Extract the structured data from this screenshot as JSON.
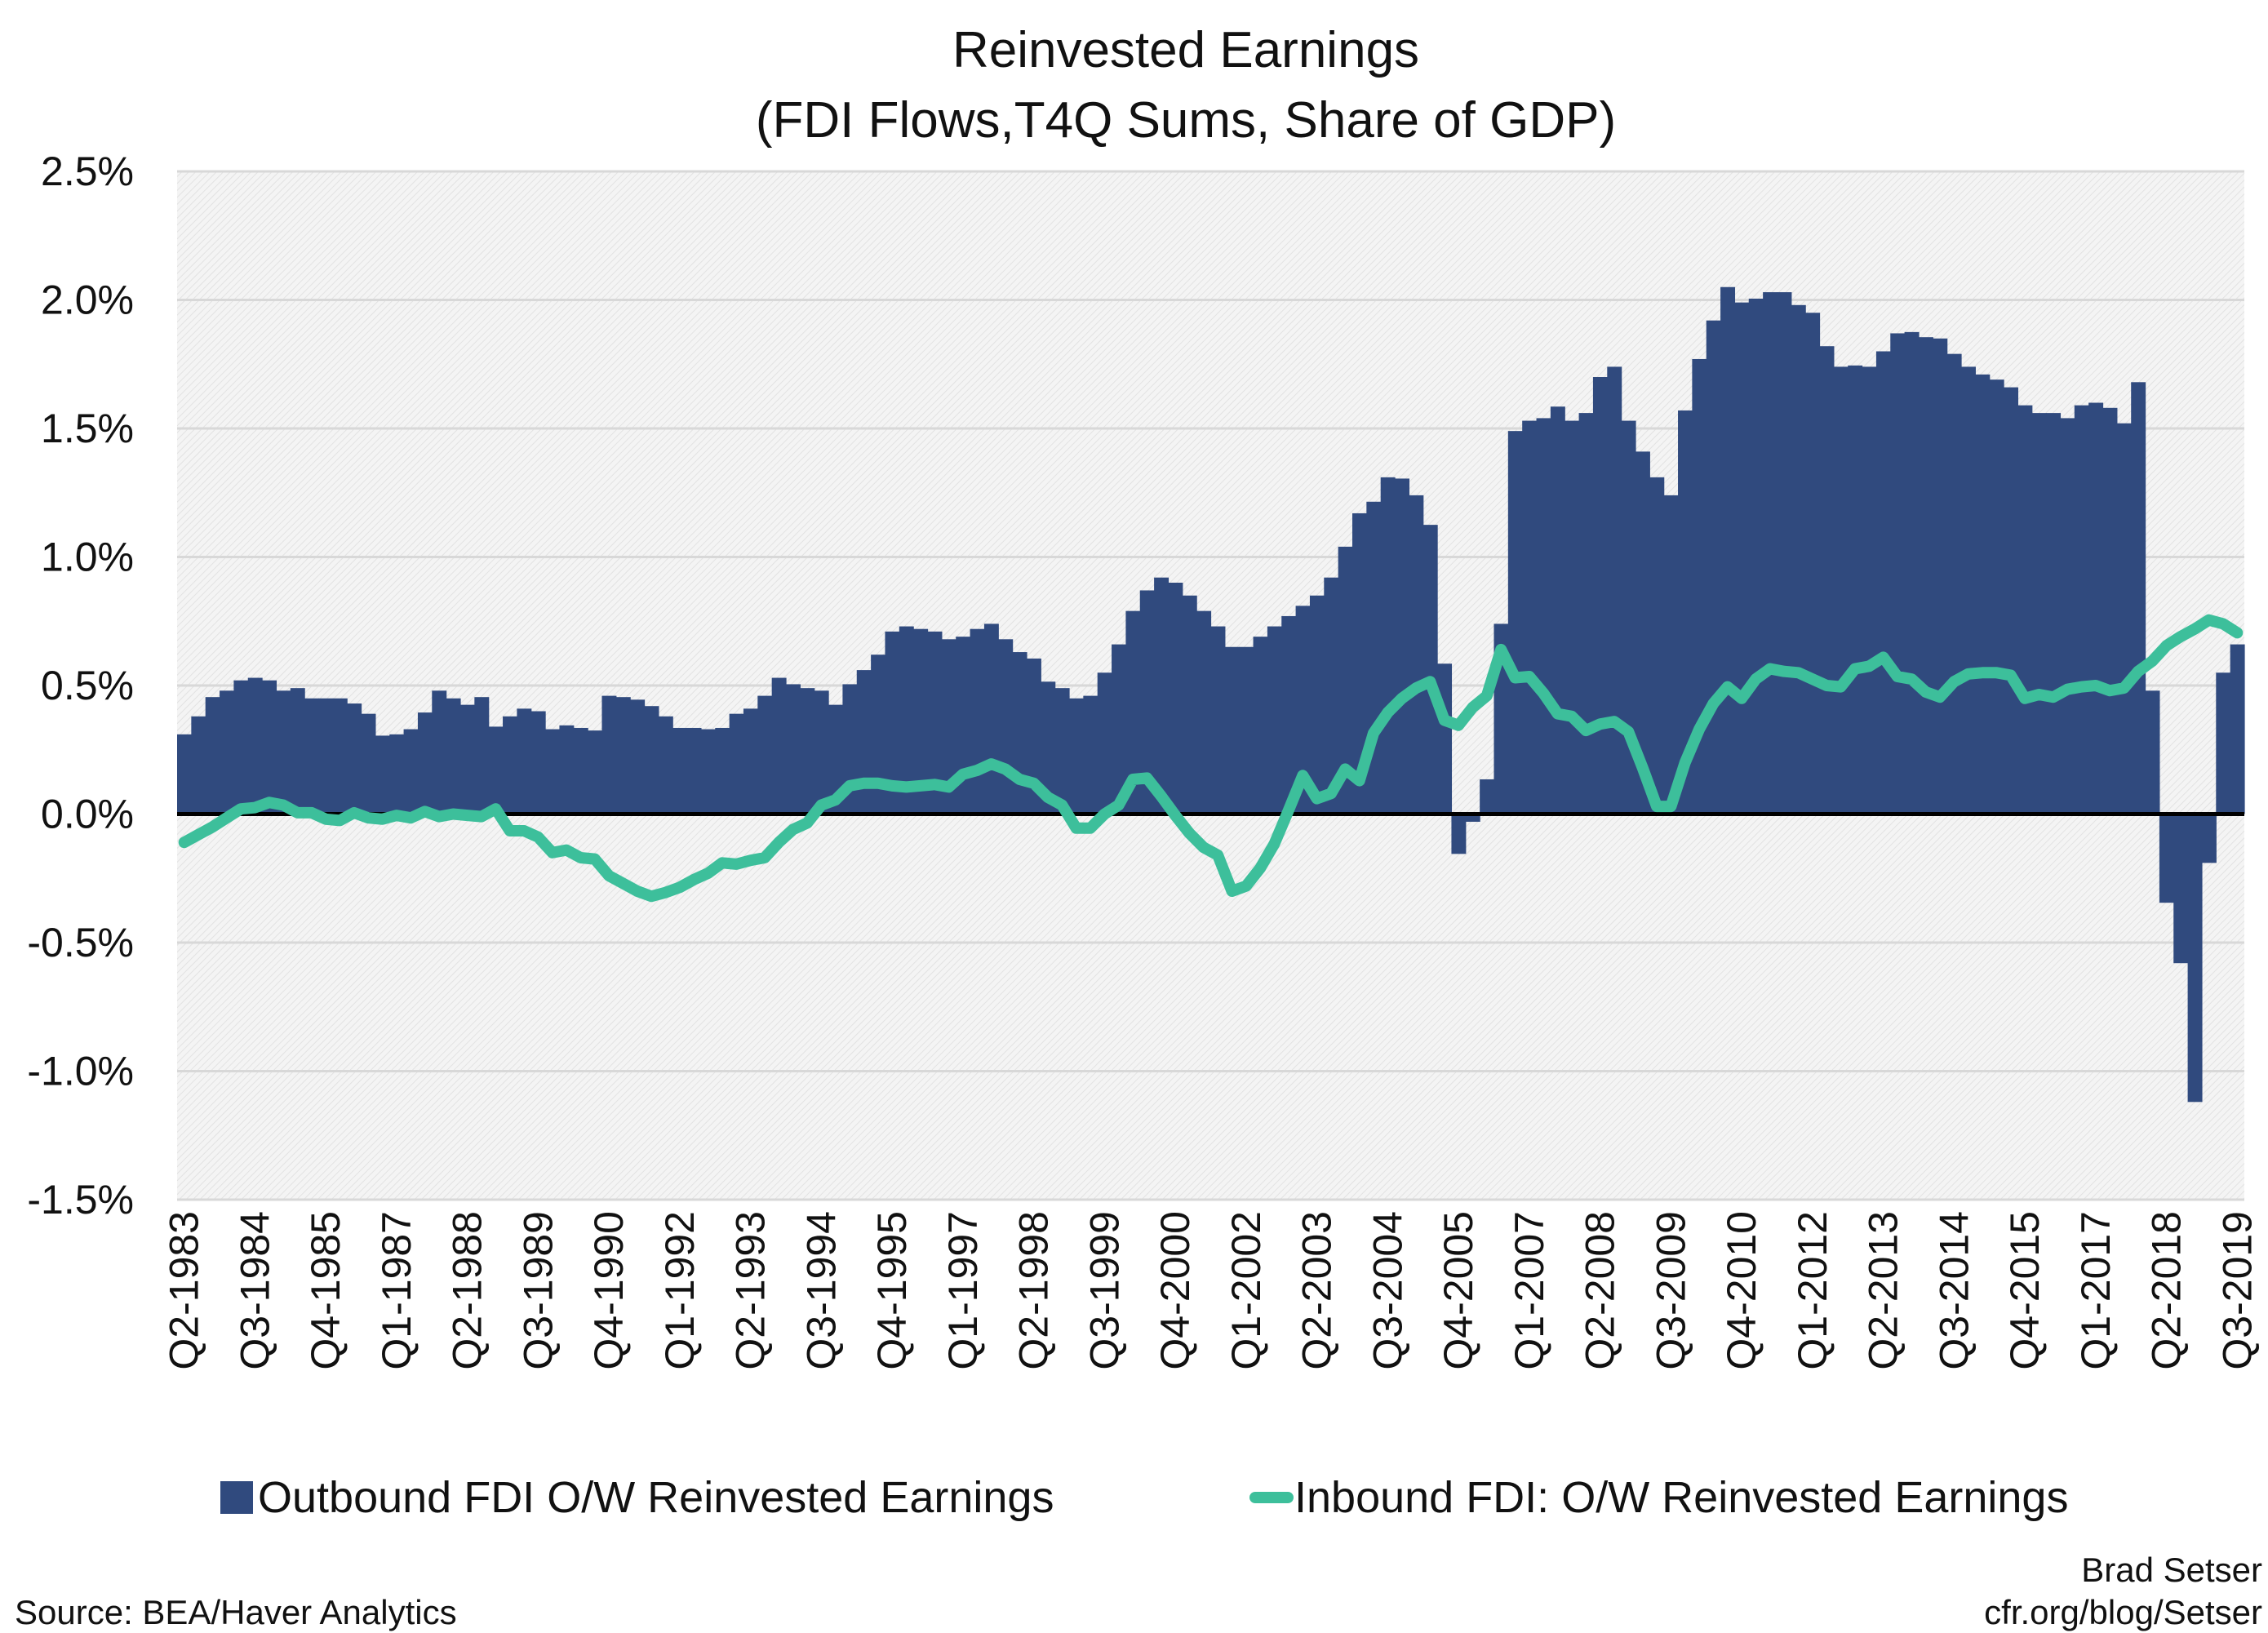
{
  "chart_data": {
    "type": "bar+line",
    "title": "Reinvested Earnings",
    "subtitle": "(FDI Flows,T4Q Sums, Share of GDP)",
    "xlabel": "",
    "ylabel": "",
    "ylim": [
      -1.5,
      2.5
    ],
    "y_ticks": [
      "2.5%",
      "2.0%",
      "1.5%",
      "1.0%",
      "0.5%",
      "0.0%",
      "-0.5%",
      "-1.0%",
      "-1.5%"
    ],
    "y_tick_values": [
      2.5,
      2.0,
      1.5,
      1.0,
      0.5,
      0.0,
      -0.5,
      -1.0,
      -1.5
    ],
    "grid": true,
    "legend_position": "bottom",
    "x_tick_labels": [
      "Q2-1983",
      "Q3-1984",
      "Q4-1985",
      "Q1-1987",
      "Q2-1988",
      "Q3-1989",
      "Q4-1990",
      "Q1-1992",
      "Q2-1993",
      "Q3-1994",
      "Q4-1995",
      "Q1-1997",
      "Q2-1998",
      "Q3-1999",
      "Q4-2000",
      "Q1-2002",
      "Q2-2003",
      "Q3-2004",
      "Q4-2005",
      "Q1-2007",
      "Q2-2008",
      "Q3-2009",
      "Q4-2010",
      "Q1-2012",
      "Q2-2013",
      "Q3-2014",
      "Q4-2015",
      "Q1-2017",
      "Q2-2018",
      "Q3-2019"
    ],
    "categories": [
      "Q2-1983",
      "Q3-1983",
      "Q4-1983",
      "Q1-1984",
      "Q2-1984",
      "Q3-1984",
      "Q4-1984",
      "Q1-1985",
      "Q2-1985",
      "Q3-1985",
      "Q4-1985",
      "Q1-1986",
      "Q2-1986",
      "Q3-1986",
      "Q4-1986",
      "Q1-1987",
      "Q2-1987",
      "Q3-1987",
      "Q4-1987",
      "Q1-1988",
      "Q2-1988",
      "Q3-1988",
      "Q4-1988",
      "Q1-1989",
      "Q2-1989",
      "Q3-1989",
      "Q4-1989",
      "Q1-1990",
      "Q2-1990",
      "Q3-1990",
      "Q4-1990",
      "Q1-1991",
      "Q2-1991",
      "Q3-1991",
      "Q4-1991",
      "Q1-1992",
      "Q2-1992",
      "Q3-1992",
      "Q4-1992",
      "Q1-1993",
      "Q2-1993",
      "Q3-1993",
      "Q4-1993",
      "Q1-1994",
      "Q2-1994",
      "Q3-1994",
      "Q4-1994",
      "Q1-1995",
      "Q2-1995",
      "Q3-1995",
      "Q4-1995",
      "Q1-1996",
      "Q2-1996",
      "Q3-1996",
      "Q4-1996",
      "Q1-1997",
      "Q2-1997",
      "Q3-1997",
      "Q4-1997",
      "Q1-1998",
      "Q2-1998",
      "Q3-1998",
      "Q4-1998",
      "Q1-1999",
      "Q2-1999",
      "Q3-1999",
      "Q4-1999",
      "Q1-2000",
      "Q2-2000",
      "Q3-2000",
      "Q4-2000",
      "Q1-2001",
      "Q2-2001",
      "Q3-2001",
      "Q4-2001",
      "Q1-2002",
      "Q2-2002",
      "Q3-2002",
      "Q4-2002",
      "Q1-2003",
      "Q2-2003",
      "Q3-2003",
      "Q4-2003",
      "Q1-2004",
      "Q2-2004",
      "Q3-2004",
      "Q4-2004",
      "Q1-2005",
      "Q2-2005",
      "Q3-2005",
      "Q4-2005",
      "Q1-2006",
      "Q2-2006",
      "Q3-2006",
      "Q4-2006",
      "Q1-2007",
      "Q2-2007",
      "Q3-2007",
      "Q4-2007",
      "Q1-2008",
      "Q2-2008",
      "Q3-2008",
      "Q4-2008",
      "Q1-2009",
      "Q2-2009",
      "Q3-2009",
      "Q4-2009",
      "Q1-2010",
      "Q2-2010",
      "Q3-2010",
      "Q4-2010",
      "Q1-2011",
      "Q2-2011",
      "Q3-2011",
      "Q4-2011",
      "Q1-2012",
      "Q2-2012",
      "Q3-2012",
      "Q4-2012",
      "Q1-2013",
      "Q2-2013",
      "Q3-2013",
      "Q4-2013",
      "Q1-2014",
      "Q2-2014",
      "Q3-2014",
      "Q4-2014",
      "Q1-2015",
      "Q2-2015",
      "Q3-2015",
      "Q4-2015",
      "Q1-2016",
      "Q2-2016",
      "Q3-2016",
      "Q4-2016",
      "Q1-2017",
      "Q2-2017",
      "Q3-2017",
      "Q4-2017",
      "Q1-2018",
      "Q2-2018",
      "Q3-2018",
      "Q4-2018",
      "Q1-2019",
      "Q2-2019",
      "Q3-2019"
    ],
    "series": [
      {
        "name": "Outbound FDI O/W Reinvested Earnings",
        "type": "bar",
        "color": "#304a7e",
        "values": [
          0.31,
          0.38,
          0.455,
          0.48,
          0.52,
          0.53,
          0.52,
          0.48,
          0.49,
          0.45,
          0.45,
          0.45,
          0.43,
          0.39,
          0.305,
          0.31,
          0.33,
          0.395,
          0.48,
          0.45,
          0.425,
          0.455,
          0.34,
          0.38,
          0.41,
          0.4,
          0.33,
          0.345,
          0.335,
          0.325,
          0.46,
          0.455,
          0.445,
          0.42,
          0.38,
          0.335,
          0.335,
          0.33,
          0.335,
          0.39,
          0.41,
          0.46,
          0.53,
          0.505,
          0.49,
          0.48,
          0.425,
          0.505,
          0.56,
          0.62,
          0.71,
          0.73,
          0.72,
          0.71,
          0.68,
          0.69,
          0.72,
          0.74,
          0.68,
          0.63,
          0.605,
          0.515,
          0.49,
          0.45,
          0.46,
          0.55,
          0.66,
          0.79,
          0.87,
          0.92,
          0.9,
          0.85,
          0.79,
          0.73,
          0.65,
          0.65,
          0.69,
          0.73,
          0.77,
          0.81,
          0.85,
          0.92,
          1.04,
          1.17,
          1.215,
          1.31,
          1.305,
          1.24,
          1.125,
          0.585,
          -0.155,
          -0.03,
          0.135,
          0.74,
          1.49,
          1.53,
          1.54,
          1.585,
          1.53,
          1.56,
          1.7,
          1.74,
          1.53,
          1.41,
          1.31,
          1.24,
          1.57,
          1.77,
          1.92,
          2.05,
          1.99,
          2.005,
          2.03,
          2.03,
          1.98,
          1.95,
          1.82,
          1.74,
          1.745,
          1.74,
          1.8,
          1.87,
          1.875,
          1.855,
          1.85,
          1.79,
          1.74,
          1.71,
          1.69,
          1.66,
          1.59,
          1.56,
          1.56,
          1.54,
          1.59,
          1.6,
          1.58,
          1.52,
          1.68,
          0.48,
          -0.345,
          -0.58,
          -1.12,
          -0.19,
          0.55,
          0.66
        ]
      },
      {
        "name": "Inbound FDI: O/W Reinvested Earnings",
        "type": "line",
        "color": "#3dbf9b",
        "values": [
          -0.11,
          -0.08,
          -0.05,
          -0.015,
          0.02,
          0.025,
          0.045,
          0.035,
          0.005,
          0.005,
          -0.02,
          -0.025,
          0.005,
          -0.015,
          -0.02,
          -0.005,
          -0.015,
          0.01,
          -0.01,
          0.0,
          -0.005,
          -0.01,
          0.02,
          -0.065,
          -0.065,
          -0.09,
          -0.15,
          -0.14,
          -0.17,
          -0.175,
          -0.24,
          -0.27,
          -0.3,
          -0.32,
          -0.305,
          -0.285,
          -0.255,
          -0.23,
          -0.19,
          -0.195,
          -0.18,
          -0.17,
          -0.11,
          -0.06,
          -0.035,
          0.035,
          0.055,
          0.11,
          0.12,
          0.12,
          0.11,
          0.105,
          0.11,
          0.115,
          0.105,
          0.155,
          0.17,
          0.195,
          0.175,
          0.135,
          0.12,
          0.065,
          0.035,
          -0.055,
          -0.055,
          0.0,
          0.035,
          0.135,
          0.14,
          0.07,
          -0.005,
          -0.075,
          -0.13,
          -0.16,
          -0.3,
          -0.28,
          -0.21,
          -0.115,
          0.015,
          0.15,
          0.06,
          0.08,
          0.175,
          0.13,
          0.315,
          0.395,
          0.45,
          0.49,
          0.515,
          0.365,
          0.345,
          0.415,
          0.46,
          0.64,
          0.53,
          0.535,
          0.47,
          0.39,
          0.38,
          0.325,
          0.35,
          0.36,
          0.32,
          0.18,
          0.03,
          0.03,
          0.2,
          0.33,
          0.43,
          0.495,
          0.45,
          0.525,
          0.565,
          0.555,
          0.55,
          0.525,
          0.5,
          0.495,
          0.565,
          0.575,
          0.61,
          0.535,
          0.525,
          0.475,
          0.455,
          0.515,
          0.545,
          0.55,
          0.55,
          0.54,
          0.45,
          0.465,
          0.455,
          0.485,
          0.495,
          0.5,
          0.48,
          0.49,
          0.555,
          0.595,
          0.655,
          0.69,
          0.72,
          0.755,
          0.74,
          0.705
        ]
      }
    ]
  },
  "legend": {
    "bar_label": "Outbound FDI O/W Reinvested Earnings",
    "line_label": "Inbound FDI: O/W Reinvested Earnings"
  },
  "footer": {
    "source": "Source: BEA/Haver Analytics",
    "author": "Brad Setser",
    "site": "cfr.org/blog/Setser"
  }
}
